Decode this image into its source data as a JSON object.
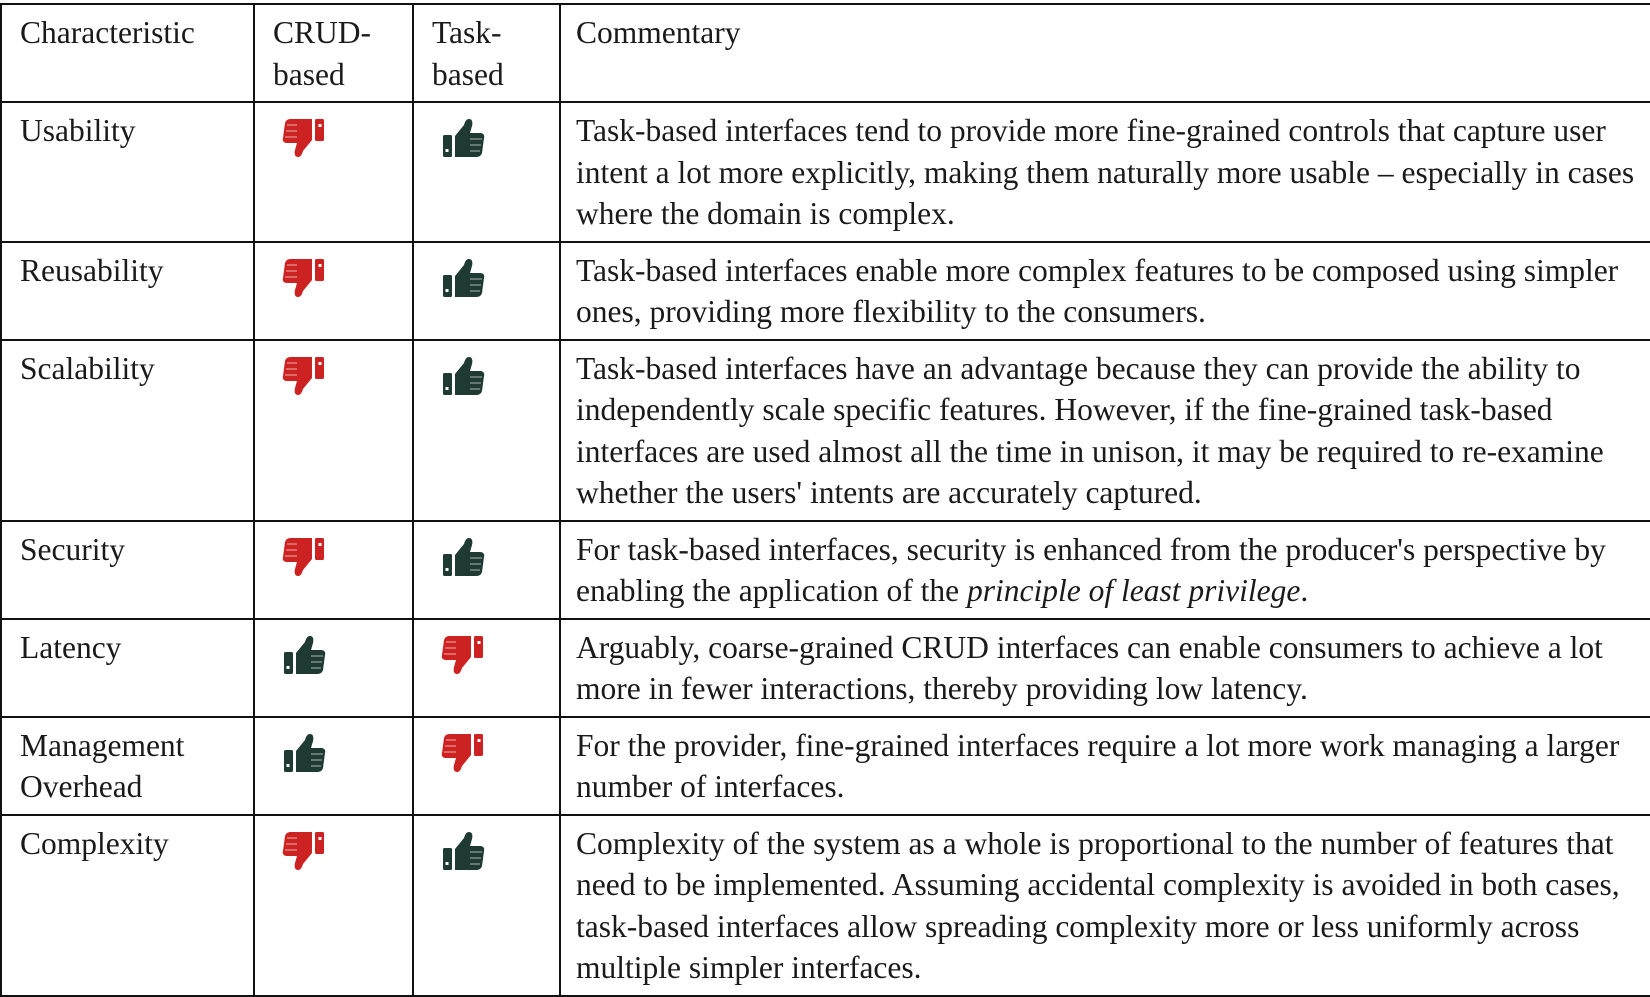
{
  "headers": {
    "characteristic": "Characteristic",
    "crud": "CRUD-\nbased",
    "task": "Task-\nbased",
    "commentary": "Commentary"
  },
  "colors": {
    "thumbs_up": "#1f3a33",
    "thumbs_down": "#cc2222"
  },
  "rows": [
    {
      "characteristic": "Usability",
      "crud": "thumbs-down-icon",
      "task": "thumbs-up-icon",
      "commentary": "Task-based interfaces tend to provide more fine-grained controls that capture user intent a lot more explicitly, making them naturally more usable – especially in cases where the domain is complex."
    },
    {
      "characteristic": "Reusability",
      "crud": "thumbs-down-icon",
      "task": "thumbs-up-icon",
      "commentary": "Task-based interfaces enable more complex features to be composed using simpler ones, providing more flexibility to the consumers."
    },
    {
      "characteristic": "Scalability",
      "crud": "thumbs-down-icon",
      "task": "thumbs-up-icon",
      "commentary": "Task-based interfaces have an advantage because they can provide the ability to independently scale specific features. However, if the fine-grained task-based interfaces are used almost all the time in unison, it may be required to re-examine whether the users' intents are accurately captured."
    },
    {
      "characteristic": "Security",
      "crud": "thumbs-down-icon",
      "task": "thumbs-up-icon",
      "commentary_before": "For task-based interfaces, security is enhanced from the producer's perspective by enabling the application of the ",
      "commentary_emphasis": "principle of least privilege",
      "commentary_after": "."
    },
    {
      "characteristic": "Latency",
      "crud": "thumbs-up-icon",
      "task": "thumbs-down-icon",
      "commentary": "Arguably, coarse-grained CRUD interfaces can enable consumers to achieve a lot more in fewer interactions, thereby providing low latency."
    },
    {
      "characteristic": "Management Overhead",
      "crud": "thumbs-up-icon",
      "task": "thumbs-down-icon",
      "commentary": "For the provider, fine-grained interfaces require a lot more work managing a larger number of interfaces."
    },
    {
      "characteristic": "Complexity",
      "crud": "thumbs-down-icon",
      "task": "thumbs-up-icon",
      "commentary": "Complexity of the system as a whole is proportional to the number of features that need to be implemented. Assuming accidental complexity is avoided in both cases, task-based interfaces allow spreading complexity more or less uniformly across multiple simpler interfaces."
    }
  ]
}
